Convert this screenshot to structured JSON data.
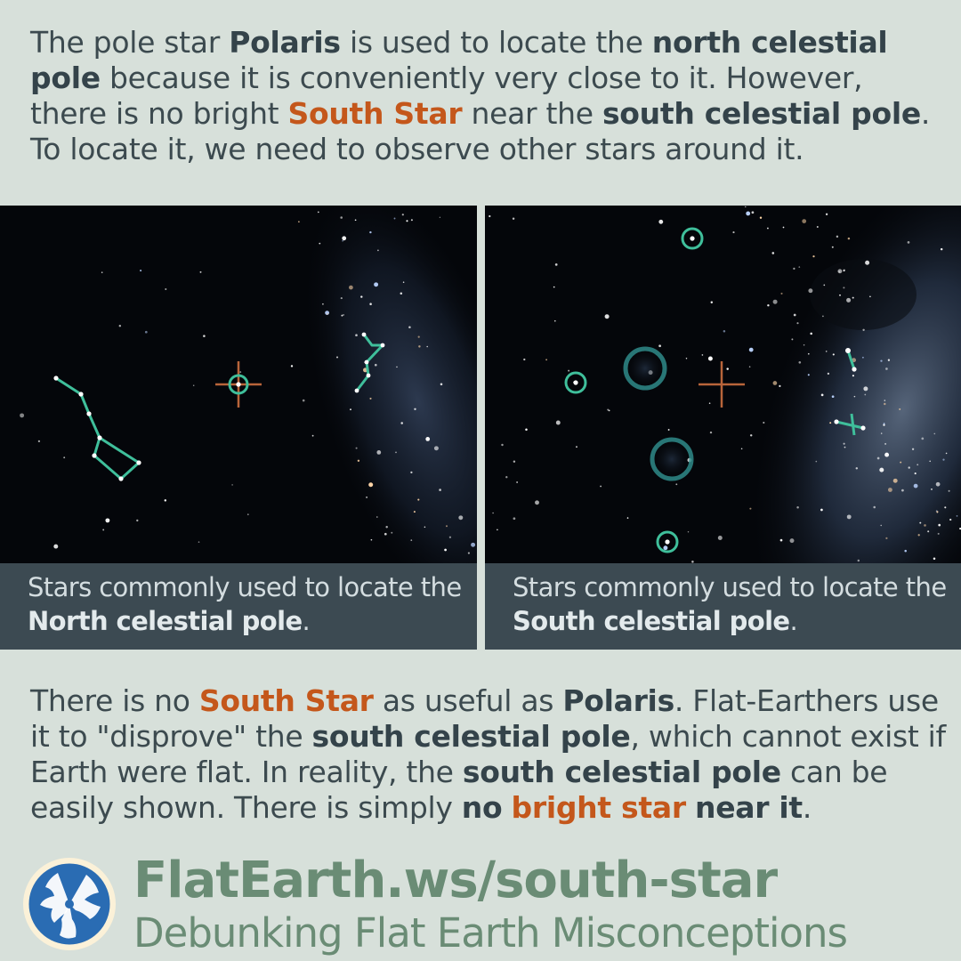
{
  "intro": {
    "t1": "The pole star ",
    "b1": "Polaris",
    "t2": " is used to locate the ",
    "b2": "north celestial pole",
    "t3": " because it is conveniently very close to it. However, there is no bright ",
    "h1": "South Star",
    "t4": " near the ",
    "b3": "south celestial pole",
    "t5": ". To locate it, we need to observe other stars around it."
  },
  "north_caption": {
    "t1": "Stars commonly used to locate the ",
    "b1": "North celestial pole",
    "t2": "."
  },
  "south_caption": {
    "t1": "Stars commonly used to locate the ",
    "b1": "South celestial pole",
    "t2": "."
  },
  "outro": {
    "t1": "There is no ",
    "h1": "South Star",
    "t2": " as useful as ",
    "b1": "Polaris",
    "t3": ". Flat-Earthers use it to \"disprove\" the ",
    "b2": "south celestial pole",
    "t4": ", which cannot exist if Earth were flat. In reality, the ",
    "b3": "south celestial pole",
    "t5": " can be easily shown. There is simply ",
    "b4": "no",
    "t6": " ",
    "h2": "bright star",
    "t7": " ",
    "b5": "near it",
    "t8": "."
  },
  "footer": {
    "url": "FlatEarth.ws/south-star",
    "tagline": "Debunking Flat Earth Misconceptions"
  },
  "colors": {
    "background": "#d7e0da",
    "highlight": "#c4571b",
    "constellation": "#3fbf9b",
    "pole_marker": "#b8643a",
    "caption_bg": "#3c4a52",
    "footer_text": "#6a8c75"
  },
  "icons": {
    "logo": "globe-logo-icon"
  }
}
